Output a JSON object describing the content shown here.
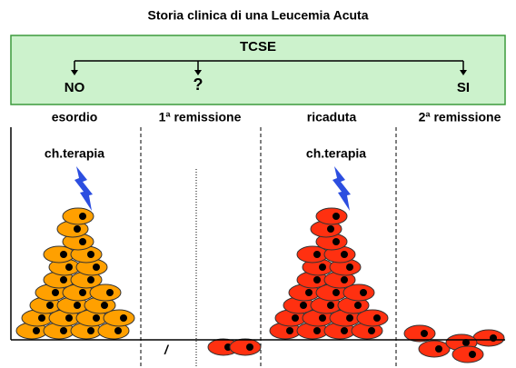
{
  "title": "Storia clinica di una Leucemia Acuta",
  "tcse": {
    "label": "TCSE",
    "options": [
      "NO",
      "?",
      "SI"
    ]
  },
  "phases": [
    "esordio",
    "1ª remissione",
    "ricaduta",
    "2ª remissione"
  ],
  "therapy_labels": [
    "ch.terapia",
    "ch.terapia"
  ],
  "marker": "/"
}
